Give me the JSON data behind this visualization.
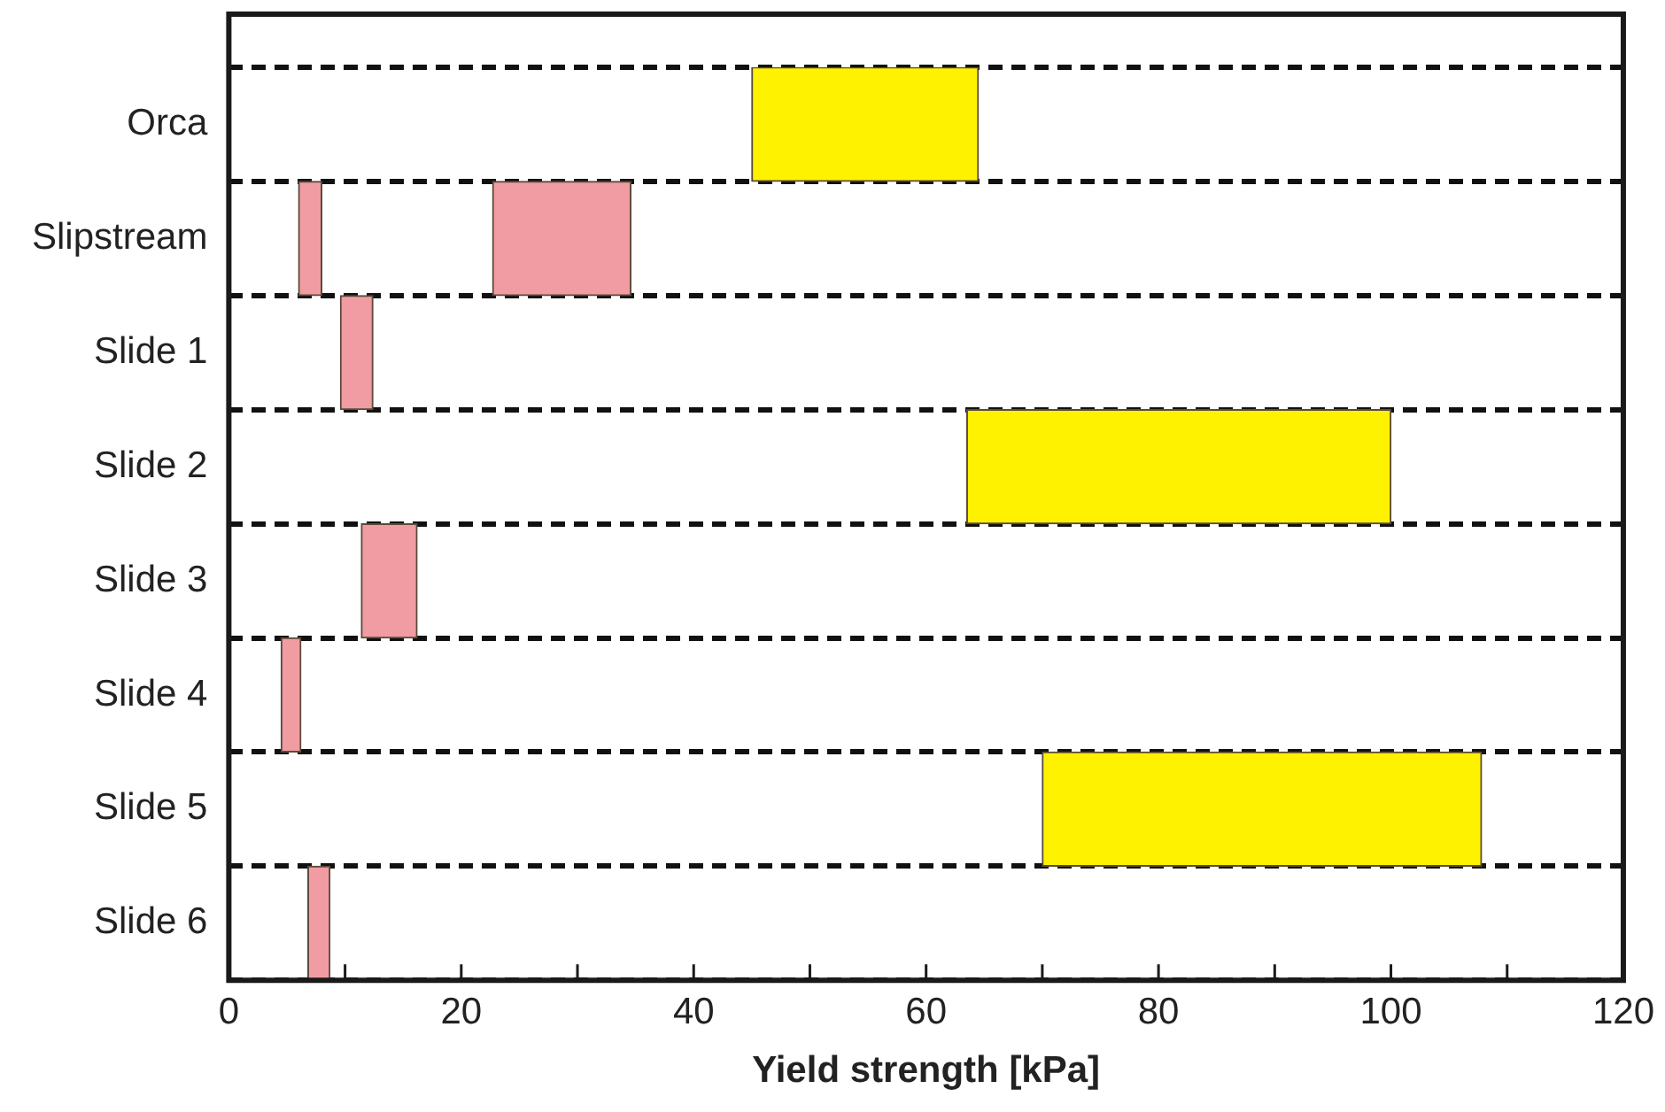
{
  "chart_data": {
    "type": "bar",
    "orientation": "horizontal",
    "xlabel": "Yield strength [kPa]",
    "categories": [
      "Orca",
      "Slipstream",
      "Slide 1",
      "Slide 2",
      "Slide 3",
      "Slide 4",
      "Slide 5",
      "Slide 6"
    ],
    "xlim": [
      0,
      120
    ],
    "xticks": [
      0,
      {
        "value": 10,
        "label": null
      },
      20,
      {
        "value": 30,
        "label": null
      },
      40,
      {
        "value": 50,
        "label": null
      },
      60,
      {
        "value": 70,
        "label": null
      },
      80,
      {
        "value": 90,
        "label": null
      },
      100,
      {
        "value": 110,
        "label": null
      },
      120
    ],
    "grid": "y",
    "series": [
      {
        "color": "#f09ca2",
        "base": [
          null,
          6,
          9.6,
          null,
          11.4,
          4.5,
          null,
          6.8
        ],
        "values": [
          null,
          2,
          2.8,
          null,
          4.8,
          1.7,
          null,
          1.9
        ]
      },
      {
        "color": "#f09ca2",
        "base": [
          null,
          22.7,
          null,
          null,
          null,
          null,
          null,
          null
        ],
        "values": [
          null,
          11.9,
          null,
          null,
          null,
          null,
          null,
          null
        ]
      },
      {
        "color": "#fff200",
        "base": [
          45,
          null,
          null,
          63.5,
          null,
          null,
          70,
          null
        ],
        "values": [
          19.5,
          null,
          null,
          36.5,
          null,
          null,
          37.8,
          null
        ]
      }
    ]
  }
}
